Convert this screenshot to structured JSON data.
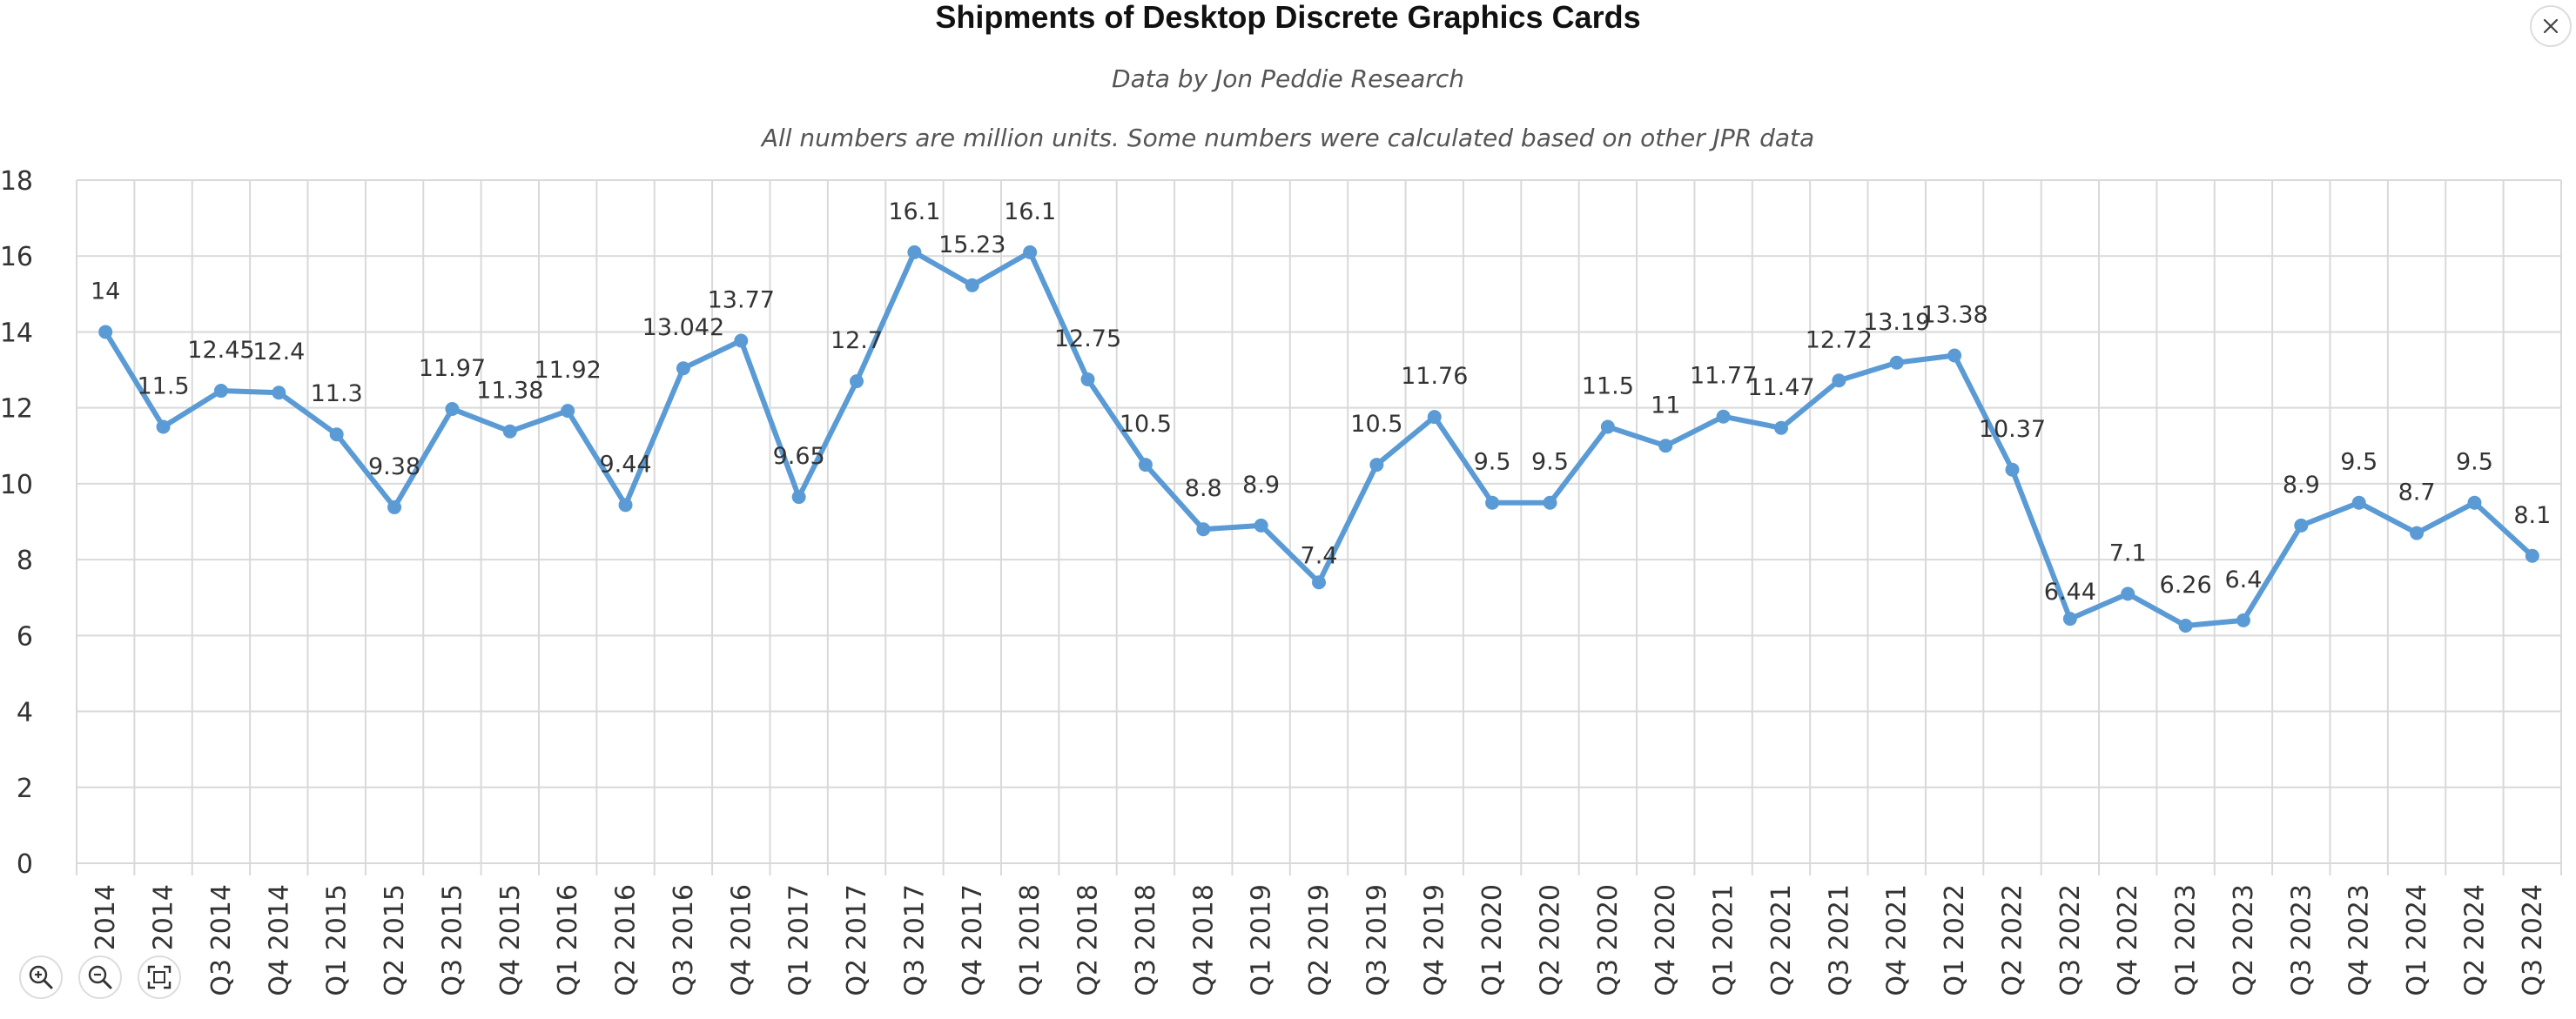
{
  "chart_data": {
    "type": "line",
    "title": "Shipments of Desktop Discrete Graphics Cards",
    "subtitle": "Data by Jon Peddie Research",
    "note": "All numbers are million units. Some numbers were calculated based on other JPR data",
    "xlabel": "",
    "ylabel": "",
    "ylim": [
      0,
      18
    ],
    "yticks": [
      "0",
      "2",
      "4",
      "6",
      "8",
      "10",
      "12",
      "14",
      "16",
      "18"
    ],
    "grid": true,
    "color": "#5b9bd5",
    "categories": [
      "2014",
      "2014",
      "Q3 2014",
      "Q4 2014",
      "Q1 2015",
      "Q2 2015",
      "Q3 2015",
      "Q4 2015",
      "Q1 2016",
      "Q2 2016",
      "Q3 2016",
      "Q4 2016",
      "Q1 2017",
      "Q2 2017",
      "Q3 2017",
      "Q4 2017",
      "Q1 2018",
      "Q2 2018",
      "Q3 2018",
      "Q4 2018",
      "Q1 2019",
      "Q2 2019",
      "Q3 2019",
      "Q4 2019",
      "Q1 2020",
      "Q2 2020",
      "Q3 2020",
      "Q4 2020",
      "Q1 2021",
      "Q2 2021",
      "Q3 2021",
      "Q4 2021",
      "Q1 2022",
      "Q2 2022",
      "Q3 2022",
      "Q4 2022",
      "Q1 2023",
      "Q2 2023",
      "Q3 2023",
      "Q4 2023",
      "Q1 2024",
      "Q2 2024",
      "Q3 2024"
    ],
    "values": [
      14,
      11.5,
      12.45,
      12.4,
      11.3,
      9.38,
      11.97,
      11.38,
      11.92,
      9.44,
      13.042,
      13.77,
      9.65,
      12.7,
      16.1,
      15.23,
      16.1,
      12.75,
      10.5,
      8.8,
      8.9,
      7.4,
      10.5,
      11.76,
      9.5,
      9.5,
      11.5,
      11,
      11.77,
      11.47,
      12.72,
      13.19,
      13.38,
      10.37,
      6.44,
      7.1,
      6.26,
      6.4,
      8.9,
      9.5,
      8.7,
      9.5,
      8.1
    ],
    "labels": [
      "14",
      "11.5",
      "12.45",
      "12.4",
      "11.3",
      "9.38",
      "11.97",
      "11.38",
      "11.92",
      "9.44",
      "13.042",
      "13.77",
      "9.65",
      "12.7",
      "16.1",
      "15.23",
      "16.1",
      "12.75",
      "10.5",
      "8.8",
      "8.9",
      "7.4",
      "10.5",
      "11.76",
      "9.5",
      "9.5",
      "11.5",
      "11",
      "11.77",
      "11.47",
      "12.72",
      "13.19",
      "13.38",
      "10.37",
      "6.44",
      "7.1",
      "6.26",
      "6.4",
      "8.9",
      "9.5",
      "8.7",
      "9.5",
      "8.1"
    ]
  },
  "controls": {
    "close": "close-icon",
    "zoom_in": "zoom-in-icon",
    "zoom_out": "zoom-out-icon",
    "fit": "fit-to-screen-icon"
  }
}
